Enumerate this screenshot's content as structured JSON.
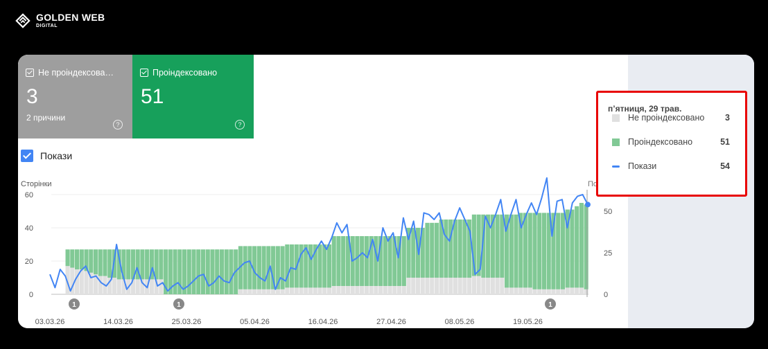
{
  "brand": {
    "name": "GOLDEN WEB",
    "sub": "DIGITAL"
  },
  "tiles": [
    {
      "label": "Не проіндексова…",
      "value": "3",
      "sub": "2 причини",
      "color": "#9e9e9e"
    },
    {
      "label": "Проіндексовано",
      "value": "51",
      "color": "#17a05b"
    }
  ],
  "toggle": {
    "label": "Покази",
    "checked": true
  },
  "chart_data": {
    "type": "bar",
    "y_left_label": "Сторінки",
    "y_right_label": "Покази",
    "y_left_ticks": [
      "60",
      "40",
      "20",
      "0"
    ],
    "y_right_ticks": [
      "50",
      "25",
      "0"
    ],
    "ylim_left": [
      0,
      60
    ],
    "ylim_right": [
      0,
      60
    ],
    "x_ticks": [
      "03.03.26",
      "14.03.26",
      "25.03.26",
      "05.04.26",
      "16.04.26",
      "27.04.26",
      "08.05.26",
      "19.05.26"
    ],
    "annotations": [
      "1",
      "1",
      "1"
    ],
    "series": [
      {
        "name": "Не проіндексовано",
        "color": "#e0e0e0",
        "values": [
          0,
          0,
          0,
          17,
          16,
          15,
          15,
          14,
          13,
          12,
          11,
          11,
          10,
          10,
          9,
          9,
          9,
          9,
          9,
          9,
          9,
          9,
          9,
          9,
          0,
          0,
          0,
          0,
          0,
          0,
          0,
          0,
          0,
          0,
          0,
          0,
          0,
          0,
          0,
          0,
          3,
          3,
          3,
          3,
          3,
          3,
          3,
          3,
          3,
          3,
          4,
          4,
          4,
          4,
          4,
          4,
          4,
          4,
          4,
          4,
          5,
          5,
          5,
          5,
          5,
          5,
          5,
          5,
          5,
          5,
          5,
          5,
          5,
          5,
          5,
          5,
          10,
          10,
          10,
          10,
          10,
          10,
          10,
          10,
          10,
          10,
          10,
          10,
          10,
          10,
          11,
          11,
          10,
          10,
          10,
          10,
          10,
          4,
          4,
          4,
          4,
          4,
          4,
          3,
          3,
          3,
          3,
          3,
          3,
          3,
          4,
          4,
          4,
          4,
          3
        ]
      },
      {
        "name": "Проіндексовано",
        "color": "#81c995",
        "values": [
          0,
          0,
          0,
          10,
          11,
          12,
          12,
          13,
          14,
          15,
          16,
          16,
          17,
          17,
          18,
          18,
          18,
          18,
          18,
          18,
          18,
          18,
          18,
          18,
          27,
          27,
          27,
          27,
          27,
          27,
          27,
          27,
          27,
          27,
          27,
          27,
          27,
          27,
          27,
          27,
          26,
          26,
          26,
          26,
          26,
          26,
          26,
          26,
          26,
          26,
          26,
          26,
          26,
          26,
          26,
          26,
          26,
          26,
          26,
          26,
          30,
          30,
          30,
          30,
          30,
          30,
          30,
          30,
          30,
          30,
          30,
          30,
          30,
          30,
          30,
          30,
          30,
          30,
          30,
          30,
          33,
          33,
          33,
          35,
          35,
          35,
          35,
          35,
          35,
          35,
          37,
          37,
          38,
          38,
          38,
          38,
          38,
          44,
          44,
          44,
          45,
          45,
          45,
          46,
          46,
          46,
          46,
          46,
          46,
          46,
          47,
          47,
          49,
          51,
          51
        ]
      },
      {
        "name": "Покази",
        "color": "#4285f4",
        "values": [
          12,
          4,
          15,
          11,
          2,
          9,
          14,
          17,
          10,
          11,
          7,
          5,
          9,
          30,
          14,
          3,
          7,
          16,
          7,
          4,
          16,
          5,
          7,
          2,
          5,
          7,
          3,
          5,
          8,
          11,
          12,
          5,
          7,
          11,
          8,
          7,
          13,
          16,
          19,
          20,
          13,
          10,
          8,
          17,
          3,
          10,
          8,
          16,
          15,
          24,
          28,
          21,
          27,
          32,
          27,
          34,
          43,
          37,
          42,
          20,
          22,
          25,
          22,
          33,
          20,
          40,
          32,
          37,
          22,
          46,
          33,
          44,
          24,
          49,
          48,
          45,
          49,
          36,
          32,
          44,
          52,
          45,
          38,
          12,
          15,
          47,
          40,
          48,
          57,
          38,
          48,
          57,
          40,
          48,
          55,
          48,
          58,
          70,
          35,
          56,
          57,
          40,
          55,
          59,
          60,
          54
        ]
      }
    ]
  },
  "tooltip": {
    "date": "п’ятниця, 29 трав.",
    "rows": [
      {
        "label": "Не проіндексовано",
        "value": "3",
        "color": "#e0e0e0"
      },
      {
        "label": "Проіндексовано",
        "value": "51",
        "color": "#81c995"
      },
      {
        "label": "Покази",
        "value": "54",
        "color": "#4285f4"
      }
    ]
  }
}
